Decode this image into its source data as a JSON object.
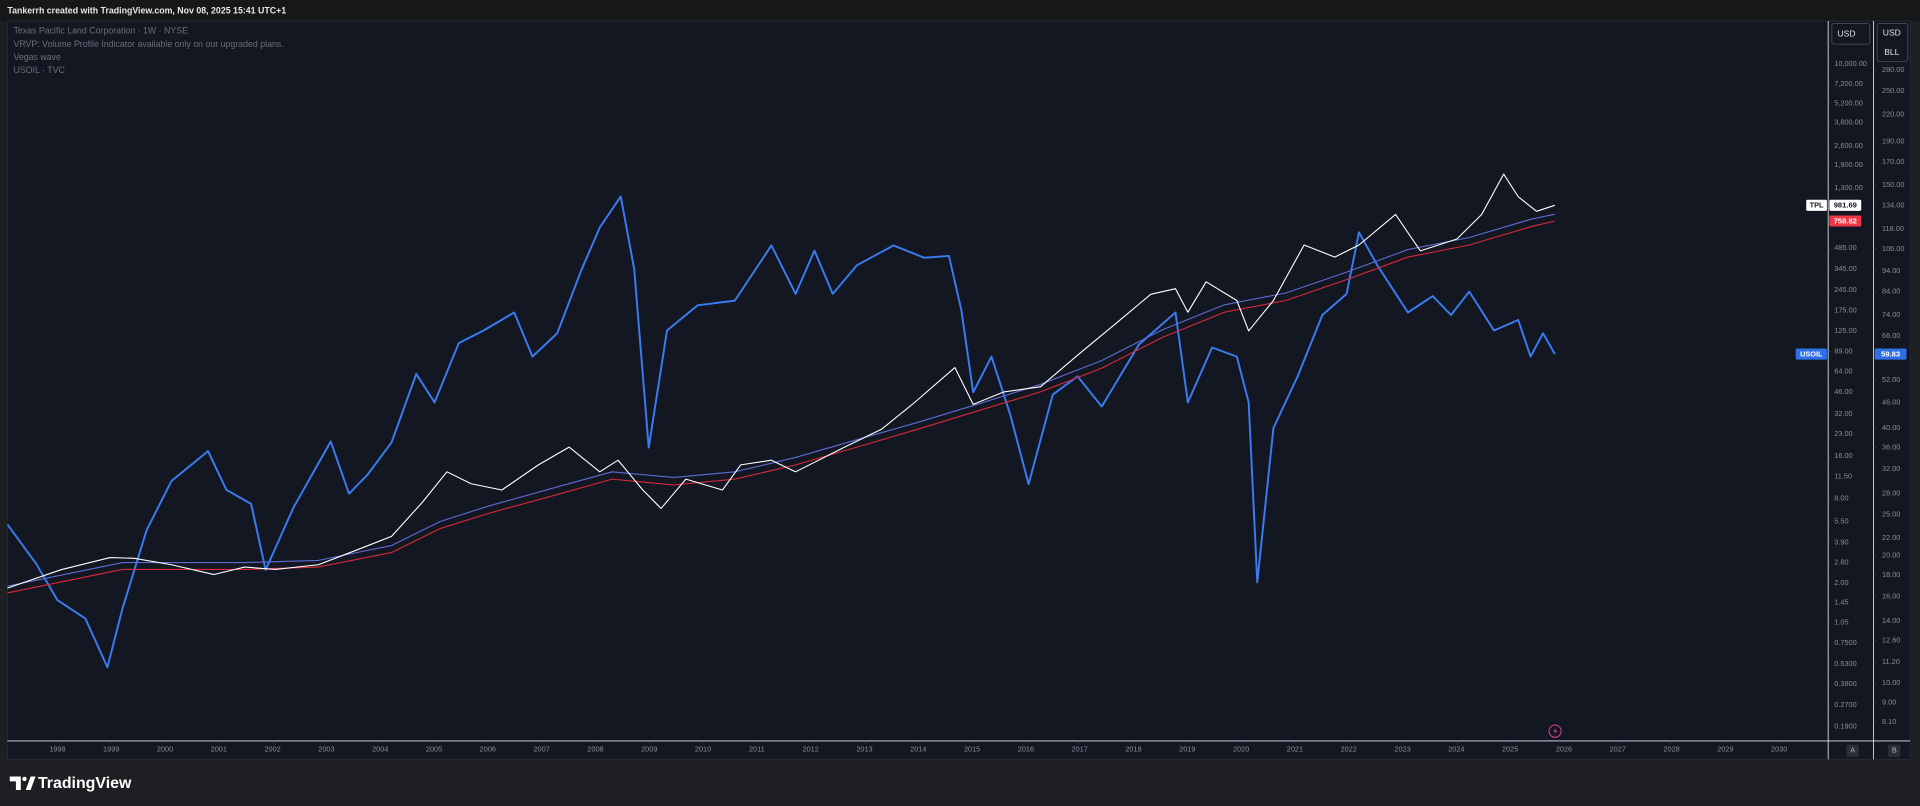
{
  "header": {
    "text": "Tankerrh created with TradingView.com, Nov 08, 2025 15:41 UTC+1"
  },
  "footer": {
    "brand": "TradingView"
  },
  "axis_headers": {
    "left_currency": "USD",
    "right_currency": "USD",
    "right_unit": "BLL",
    "left_button": "A",
    "right_button": "B"
  },
  "chart_data": {
    "type": "line",
    "legend_lines": [
      "Texas Pacific Land Corporation · 1W · NYSE",
      "VRVP: Volume Profile Indicator available only on our upgraded plans.",
      "Vegas wave",
      "USOIL · TVC"
    ],
    "log_scale": true,
    "grid": false,
    "xlim": [
      1997.07,
      2030.91
    ],
    "xticks": [
      1998,
      1999,
      2000,
      2001,
      2002,
      2003,
      2004,
      2005,
      2006,
      2007,
      2008,
      2009,
      2010,
      2011,
      2012,
      2013,
      2014,
      2015,
      2016,
      2017,
      2018,
      2019,
      2020,
      2021,
      2022,
      2023,
      2024,
      2025,
      2026,
      2027,
      2028,
      2029,
      2030
    ],
    "ylim": [
      0.15,
      20200
    ],
    "yticks": [
      {
        "value": 10000,
        "label": "10,000.00"
      },
      {
        "value": 7200,
        "label": "7,200.00"
      },
      {
        "value": 5200,
        "label": "5,200.00"
      },
      {
        "value": 3800,
        "label": "3,800.00"
      },
      {
        "value": 2600,
        "label": "2,600.00"
      },
      {
        "value": 1900,
        "label": "1,900.00"
      },
      {
        "value": 1300,
        "label": "1,300.00"
      },
      {
        "value": 485,
        "label": "485.00"
      },
      {
        "value": 345,
        "label": "345.00"
      },
      {
        "value": 245,
        "label": "245.00"
      },
      {
        "value": 175,
        "label": "175.00"
      },
      {
        "value": 125,
        "label": "125.00"
      },
      {
        "value": 89,
        "label": "89.00"
      },
      {
        "value": 64,
        "label": "64.00"
      },
      {
        "value": 46,
        "label": "46.00"
      },
      {
        "value": 32,
        "label": "32.00"
      },
      {
        "value": 23,
        "label": "23.00"
      },
      {
        "value": 16,
        "label": "16.00"
      },
      {
        "value": 11.5,
        "label": "11.50"
      },
      {
        "value": 8,
        "label": "8.00"
      },
      {
        "value": 5.5,
        "label": "5.50"
      },
      {
        "value": 3.9,
        "label": "3.90"
      },
      {
        "value": 2.8,
        "label": "2.80"
      },
      {
        "value": 2,
        "label": "2.00"
      },
      {
        "value": 1.45,
        "label": "1.45"
      },
      {
        "value": 1.05,
        "label": "1.05"
      },
      {
        "value": 0.75,
        "label": "0.7500"
      },
      {
        "value": 0.53,
        "label": "0.5300"
      },
      {
        "value": 0.38,
        "label": "0.3800"
      },
      {
        "value": 0.27,
        "label": "0.2700"
      },
      {
        "value": 0.19,
        "label": "0.1900"
      }
    ],
    "y2lim": [
      7.3,
      366
    ],
    "y2ticks": [
      {
        "value": 280,
        "label": "280.00"
      },
      {
        "value": 250,
        "label": "250.00"
      },
      {
        "value": 220,
        "label": "220.00"
      },
      {
        "value": 190,
        "label": "190.00"
      },
      {
        "value": 170,
        "label": "170.00"
      },
      {
        "value": 150,
        "label": "150.00"
      },
      {
        "value": 134,
        "label": "134.00"
      },
      {
        "value": 118,
        "label": "118.00"
      },
      {
        "value": 106,
        "label": "106.00"
      },
      {
        "value": 94,
        "label": "94.00"
      },
      {
        "value": 84,
        "label": "84.00"
      },
      {
        "value": 74,
        "label": "74.00"
      },
      {
        "value": 66,
        "label": "66.00"
      },
      {
        "value": 52,
        "label": "52.00"
      },
      {
        "value": 46,
        "label": "46.00"
      },
      {
        "value": 40,
        "label": "40.00"
      },
      {
        "value": 36,
        "label": "36.00"
      },
      {
        "value": 32,
        "label": "32.00"
      },
      {
        "value": 28,
        "label": "28.00"
      },
      {
        "value": 25,
        "label": "25.00"
      },
      {
        "value": 22,
        "label": "22.00"
      },
      {
        "value": 20,
        "label": "20.00"
      },
      {
        "value": 18,
        "label": "18.00"
      },
      {
        "value": 16,
        "label": "16.00"
      },
      {
        "value": 14,
        "label": "14.00"
      },
      {
        "value": 12.6,
        "label": "12.60"
      },
      {
        "value": 11.2,
        "label": "11.20"
      },
      {
        "value": 10,
        "label": "10.00"
      },
      {
        "value": 9,
        "label": "9.00"
      },
      {
        "value": 8.1,
        "label": "8.10"
      }
    ],
    "series": [
      {
        "name": "USOIL",
        "color": "#3a7bf0",
        "axis": "y2",
        "width": 1.6,
        "tag_color": "#2f6fe8",
        "x": [
          1997.07,
          1997.61,
          1998.0,
          1998.52,
          1998.93,
          1999.21,
          1999.66,
          2000.12,
          2000.8,
          2001.14,
          2001.6,
          2001.87,
          2002.39,
          2003.08,
          2003.42,
          2003.76,
          2004.21,
          2004.67,
          2005.01,
          2005.46,
          2005.92,
          2006.49,
          2006.83,
          2007.29,
          2007.74,
          2008.08,
          2008.47,
          2008.72,
          2008.99,
          2009.33,
          2009.9,
          2010.59,
          2011.27,
          2011.72,
          2012.07,
          2012.41,
          2012.86,
          2013.54,
          2014.11,
          2014.57,
          2014.8,
          2015.02,
          2015.36,
          2015.71,
          2016.05,
          2016.5,
          2016.96,
          2017.41,
          2018.1,
          2018.78,
          2019.01,
          2019.46,
          2019.92,
          2020.14,
          2020.3,
          2020.6,
          2021.05,
          2021.51,
          2021.96,
          2022.19,
          2022.53,
          2023.1,
          2023.56,
          2023.9,
          2024.24,
          2024.7,
          2025.15,
          2025.38,
          2025.61,
          2025.83
        ],
        "values": [
          23.7,
          19.1,
          15.7,
          14.2,
          10.9,
          15,
          23,
          30,
          35.3,
          28.6,
          26.5,
          18.5,
          26,
          37.2,
          28,
          31,
          37,
          53.7,
          46,
          63.5,
          68,
          75,
          59,
          67,
          94.6,
          119,
          141,
          95,
          36,
          68,
          78,
          80,
          108,
          83,
          105,
          83,
          97,
          108,
          101,
          102,
          76,
          48.6,
          59,
          43,
          29.5,
          48,
          53,
          45,
          63,
          75,
          46,
          62,
          59,
          46,
          17.3,
          40,
          53,
          74,
          83,
          116,
          97,
          75,
          82,
          74,
          84,
          68,
          72,
          59,
          67,
          59.83
        ]
      },
      {
        "color": "#d9283a",
        "axis": "y",
        "width": 0.9,
        "tag_color": "#f23645",
        "x": [
          1997.07,
          1999.21,
          2001.48,
          2002.85,
          2004.21,
          2005.12,
          2006.03,
          2007.17,
          2008.31,
          2009.45,
          2010.59,
          2011.72,
          2012.86,
          2014.0,
          2015.14,
          2016.27,
          2017.41,
          2018.55,
          2019.69,
          2020.83,
          2021.96,
          2023.1,
          2024.24,
          2025.38,
          2025.83
        ],
        "values": [
          1.7,
          2.5,
          2.5,
          2.6,
          3.3,
          4.9,
          6.3,
          8.3,
          11,
          10,
          11,
          13.9,
          18.6,
          25,
          34,
          46,
          68,
          113,
          170,
          206,
          290,
          420,
          512,
          690,
          758.82
        ]
      },
      {
        "color": "#5b6cd6",
        "axis": "y",
        "width": 0.9,
        "x": [
          1997.07,
          1999.21,
          2001.48,
          2002.85,
          2004.21,
          2005.12,
          2006.03,
          2007.17,
          2008.31,
          2009.45,
          2010.59,
          2011.72,
          2012.86,
          2014.0,
          2015.14,
          2016.27,
          2017.41,
          2018.55,
          2019.69,
          2020.83,
          2021.96,
          2023.1,
          2024.24,
          2025.38,
          2025.83
        ],
        "values": [
          1.9,
          2.8,
          2.8,
          2.9,
          3.7,
          5.5,
          7.1,
          9.4,
          12.4,
          11.3,
          12.4,
          15.7,
          21,
          28,
          38,
          52,
          77,
          128,
          192,
          233,
          328,
          475,
          579,
          780,
          849
        ]
      },
      {
        "name": "TPL",
        "color": "#ffffff",
        "axis": "y",
        "width": 0.9,
        "tag_color": "#ffffff",
        "x": [
          1997.07,
          1998.07,
          1998.98,
          1999.43,
          2000.12,
          2000.91,
          2001.48,
          2002.05,
          2002.85,
          2003.53,
          2004.21,
          2004.78,
          2005.24,
          2005.69,
          2006.26,
          2006.94,
          2007.51,
          2008.08,
          2008.42,
          2008.88,
          2009.22,
          2009.68,
          2010.36,
          2010.7,
          2011.27,
          2011.72,
          2012.63,
          2013.32,
          2013.89,
          2014.68,
          2015.02,
          2015.59,
          2016.27,
          2016.96,
          2017.64,
          2018.32,
          2018.78,
          2019.01,
          2019.35,
          2019.92,
          2020.14,
          2020.6,
          2021.17,
          2021.74,
          2022.19,
          2022.87,
          2023.33,
          2024.01,
          2024.47,
          2024.88,
          2025.15,
          2025.49,
          2025.83
        ],
        "values": [
          1.84,
          2.49,
          3.04,
          3.0,
          2.7,
          2.3,
          2.6,
          2.5,
          2.7,
          3.4,
          4.3,
          7.5,
          12.4,
          10.2,
          9.2,
          13.9,
          18.6,
          12.4,
          15,
          9.2,
          6.8,
          11,
          9.2,
          13.9,
          15,
          12.4,
          18.6,
          25,
          37.5,
          68.6,
          37.5,
          46,
          50,
          84,
          138,
          228,
          250,
          170,
          280,
          206,
          125,
          206,
          512,
          420,
          512,
          845,
          465,
          565,
          845,
          1640,
          1130,
          890,
          981.69
        ]
      }
    ]
  }
}
